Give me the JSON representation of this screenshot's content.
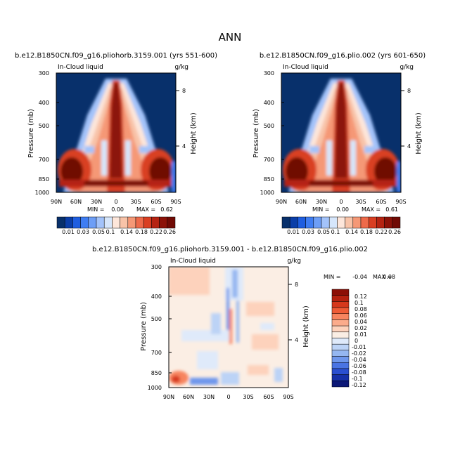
{
  "figure": {
    "title": "ANN",
    "panel_title_left": "b.e12.B1850CN.f09_g16.pliohorb.3159.001 (yrs 551-600)",
    "panel_title_right": "b.e12.B1850CN.f09_g16.plio.002 (yrs 601-650)",
    "panel_title_diff": "b.e12.B1850CN.f09_g16.pliohorb.3159.001 - b.e12.B1850CN.f09_g16.plio.002"
  },
  "chart_data": [
    {
      "type": "heatmap",
      "variable": "In-Cloud liquid",
      "units": "g/kg",
      "title": "b.e12.B1850CN.f09_g16.pliohorb.3159.001 (yrs 551-600)",
      "xlabel": "",
      "ylabel": "Pressure (mb)",
      "y2label": "Height (km)",
      "x_ticks": [
        "90N",
        "60N",
        "30N",
        "0",
        "30S",
        "60S",
        "90S"
      ],
      "y_ticks": [
        "300",
        "400",
        "500",
        "700",
        "850",
        "1000"
      ],
      "y2_ticks": [
        "8",
        "4"
      ],
      "ylim": [
        1000,
        300
      ],
      "min_label": "MIN =",
      "min": "0.00",
      "max_label": "MAX =",
      "max": "0.62",
      "colorbar_labels": [
        "0.01",
        "0.03",
        "0.05",
        "0.1",
        "0.14",
        "0.18",
        "0.22",
        "0.26"
      ]
    },
    {
      "type": "heatmap",
      "variable": "In-Cloud liquid",
      "units": "g/kg",
      "title": "b.e12.B1850CN.f09_g16.plio.002 (yrs 601-650)",
      "xlabel": "",
      "ylabel": "Pressure (mb)",
      "y2label": "Height (km)",
      "x_ticks": [
        "90N",
        "60N",
        "30N",
        "0",
        "30S",
        "60S",
        "90S"
      ],
      "y_ticks": [
        "300",
        "400",
        "500",
        "700",
        "850",
        "1000"
      ],
      "y2_ticks": [
        "8",
        "4"
      ],
      "ylim": [
        1000,
        300
      ],
      "min_label": "MIN =",
      "min": "0.00",
      "max_label": "MAX =",
      "max": "0.61",
      "colorbar_labels": [
        "0.01",
        "0.03",
        "0.05",
        "0.1",
        "0.14",
        "0.18",
        "0.22",
        "0.26"
      ]
    },
    {
      "type": "heatmap",
      "variable": "In-Cloud liquid",
      "units": "g/kg",
      "title": "b.e12.B1850CN.f09_g16.pliohorb.3159.001 - b.e12.B1850CN.f09_g16.plio.002",
      "xlabel": "",
      "ylabel": "Pressure (mb)",
      "y2label": "Height (km)",
      "x_ticks": [
        "90N",
        "60N",
        "30N",
        "0",
        "30S",
        "60S",
        "90S"
      ],
      "y_ticks": [
        "300",
        "400",
        "500",
        "700",
        "850",
        "1000"
      ],
      "y2_ticks": [
        "8",
        "4"
      ],
      "ylim": [
        1000,
        300
      ],
      "min_label": "MIN =",
      "min": "-0.04",
      "max_label": "MAX =",
      "max": "0.08",
      "colorbar_labels": [
        "0.12",
        "0.1",
        "0.08",
        "0.06",
        "0.04",
        "0.02",
        "0.01",
        "0",
        "-0.01",
        "-0.02",
        "-0.04",
        "-0.06",
        "-0.08",
        "-0.1",
        "-0.12"
      ]
    }
  ],
  "colors": {
    "abs_scale": [
      "#08306b",
      "#0b3ea8",
      "#1f5ee0",
      "#3f7df2",
      "#6d9ef6",
      "#a3c3fa",
      "#d6e6fb",
      "#fde6da",
      "#f8c3a8",
      "#f59876",
      "#ee6a4a",
      "#d93f22",
      "#b52412",
      "#8c1208",
      "#700a04"
    ],
    "diff_scale": [
      "#8c0f06",
      "#b5210f",
      "#d6381c",
      "#ee5b36",
      "#f7845f",
      "#fbab8b",
      "#fdd2bc",
      "#fbeee4",
      "#dfeafa",
      "#bcd3f6",
      "#95b7f1",
      "#6f97ec",
      "#4a74e3",
      "#2a4fd0",
      "#1630a8",
      "#0c1877"
    ]
  }
}
